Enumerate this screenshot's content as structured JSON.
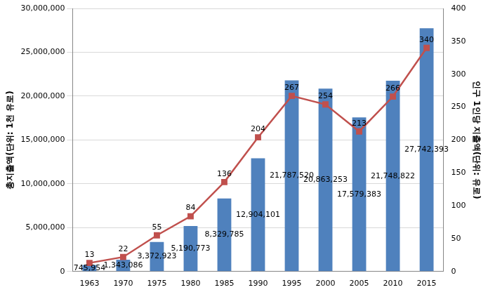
{
  "chart_data": {
    "type": "bar",
    "categories": [
      "1963",
      "1970",
      "1975",
      "1980",
      "1985",
      "1990",
      "1995",
      "2000",
      "2005",
      "2010",
      "2015"
    ],
    "y_label": "총지출액(단위: 1천 유로)",
    "y2_label": "인구 1인당 지출액(단위: 유로)",
    "ylim": [
      0,
      30000000
    ],
    "yticks": [
      0,
      {
        "value": 5000000,
        "label": "5,000,000"
      },
      {
        "value": 10000000,
        "label": "10,000,000"
      },
      {
        "value": 15000000,
        "label": "15,000,000"
      },
      {
        "value": 20000000,
        "label": "20,000,000"
      },
      {
        "value": 25000000,
        "label": "25,000,000"
      },
      {
        "value": 30000000,
        "label": "30,000,000"
      }
    ],
    "y2lim": [
      0,
      400
    ],
    "y2ticks": [
      0,
      50,
      100,
      150,
      200,
      250,
      300,
      350,
      400
    ],
    "grid": true,
    "series": [
      {
        "type": "bar",
        "color": "#4f81bd",
        "data_labels": true,
        "values": [
          745954,
          1343086,
          3372923,
          5190773,
          8329785,
          12904101,
          21787520,
          20863253,
          17579383,
          21748822,
          27742393
        ],
        "value_labels": [
          "745,954",
          "1,343,086",
          "3,372,923",
          "5,190,773",
          "8,329,785",
          "12,904,101",
          "21,787,520",
          "20,863,253",
          "17,579,383",
          "21,748,822",
          "27,742,393"
        ]
      },
      {
        "type": "line",
        "axis": "y2",
        "color": "#c0504d",
        "marker": "square",
        "data_labels": true,
        "values": [
          13,
          22,
          55,
          84,
          136,
          204,
          267,
          254,
          213,
          266,
          340
        ]
      }
    ]
  }
}
